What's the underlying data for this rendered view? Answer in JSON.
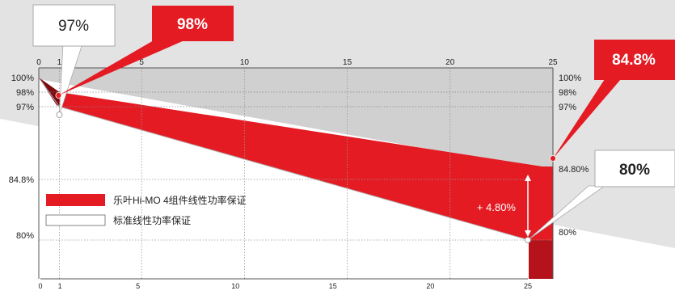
{
  "chart_data": {
    "type": "area",
    "x_ticks": [
      0,
      1,
      5,
      10,
      15,
      20,
      25
    ],
    "xlim": [
      0,
      25
    ],
    "left_y_ticks": [
      "100%",
      "98%",
      "97%",
      "84.8%",
      "80%"
    ],
    "right_y_ticks": [
      "100%",
      "98%",
      "97%",
      "84.80%",
      "80%"
    ],
    "series": [
      {
        "name": "乐叶Hi-MO 4组件线性功率保证",
        "x": [
          0,
          1,
          25
        ],
        "y": [
          100,
          98,
          84.8
        ],
        "color": "#e41b23"
      },
      {
        "name": "标准线性功率保证",
        "x": [
          0,
          1,
          25
        ],
        "y": [
          100,
          97,
          80
        ],
        "color": "#ffffff"
      }
    ],
    "callouts": {
      "y1_standard": "97%",
      "y1_himo": "98%",
      "y25_himo": "84.8%",
      "y25_standard": "80%"
    },
    "gap_annotation": "+ 4.80%",
    "legend_placement": "bottom-left",
    "grid": true
  }
}
